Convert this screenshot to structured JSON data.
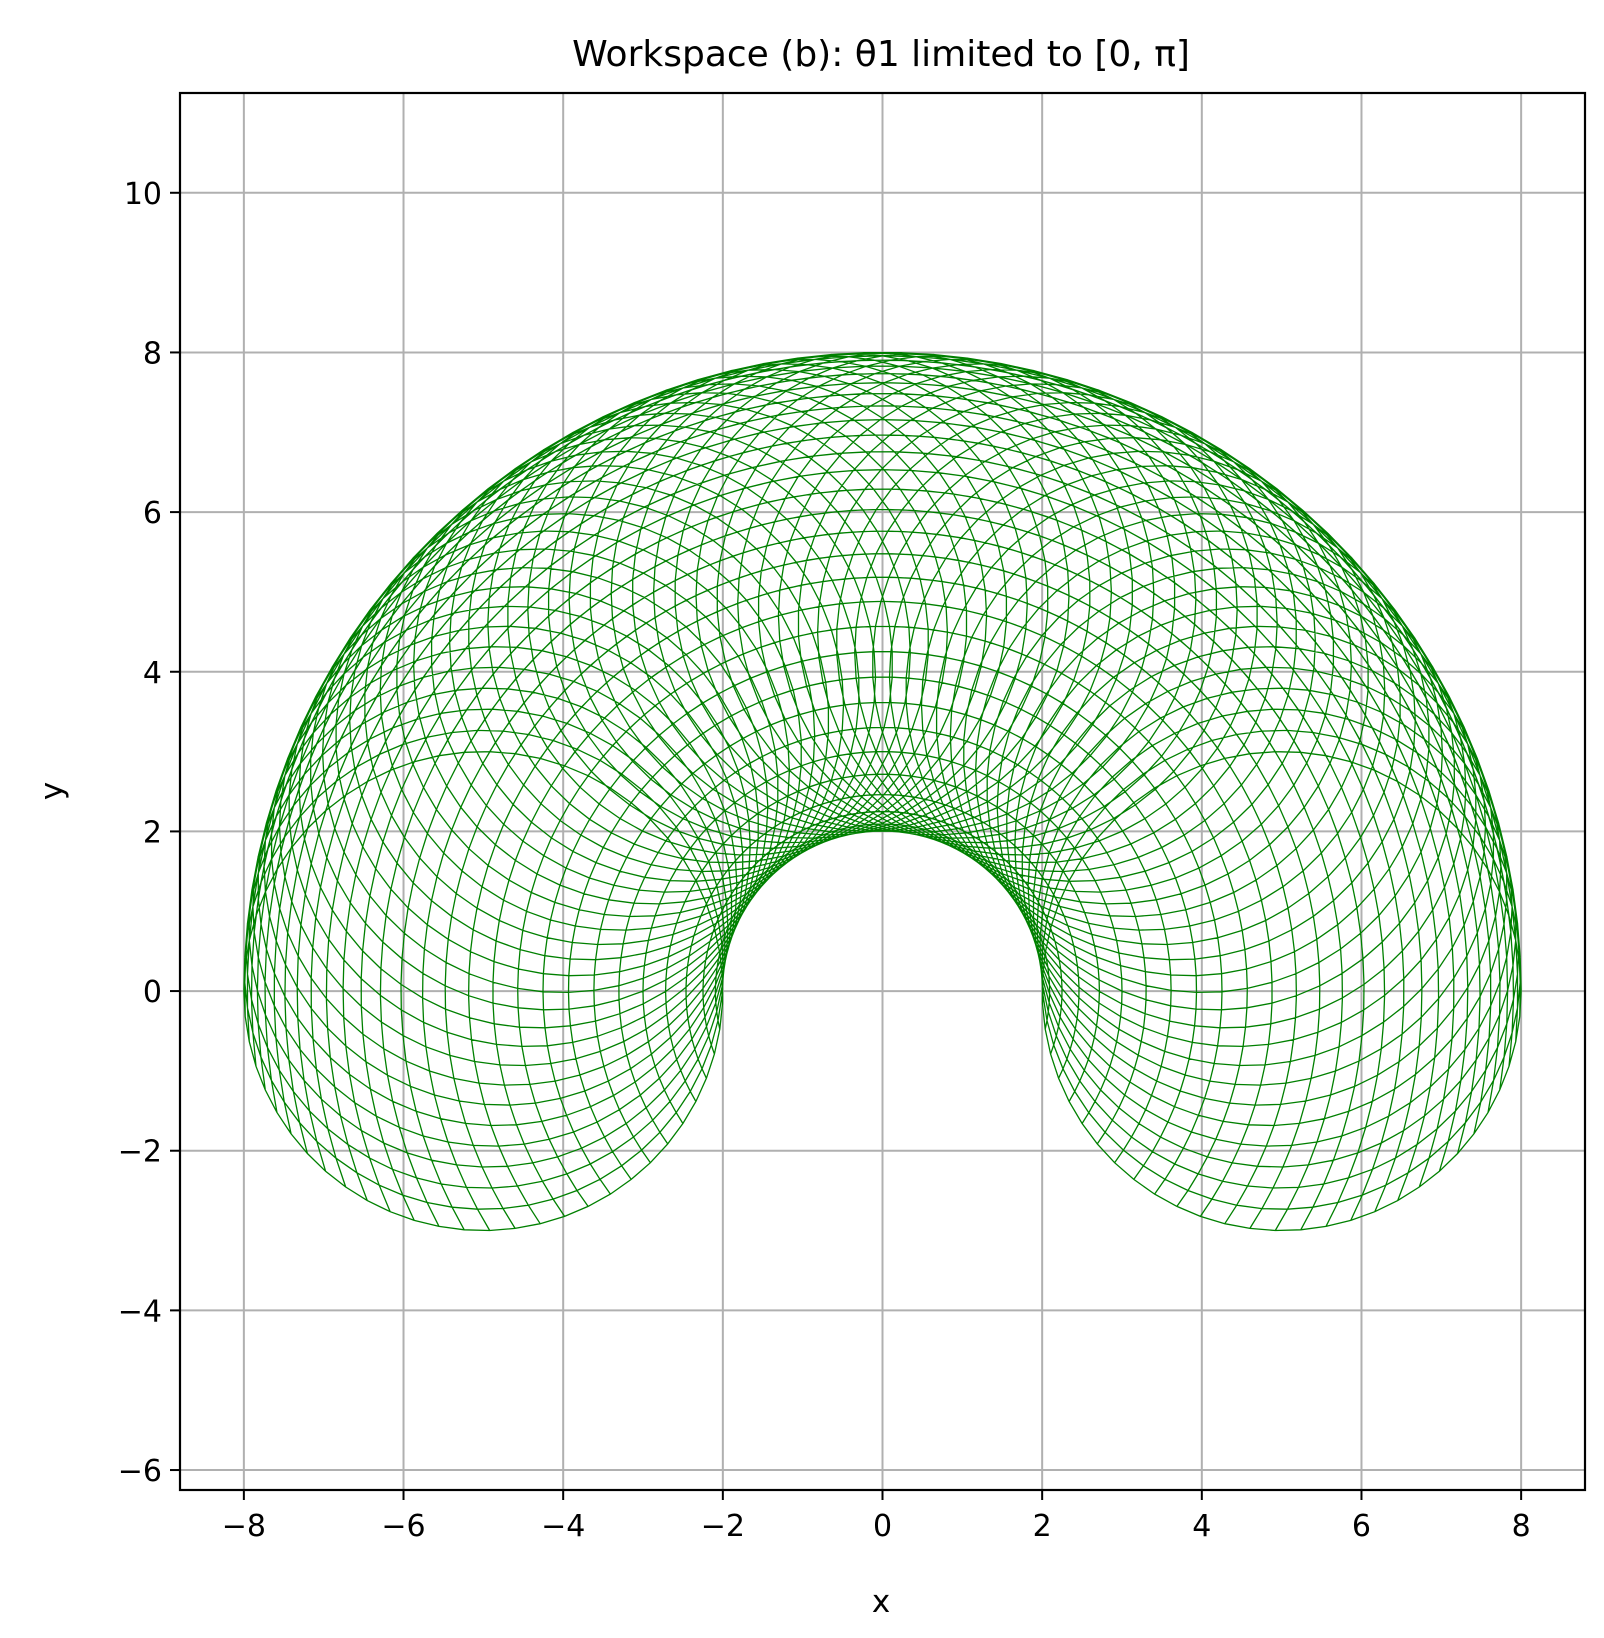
{
  "chart_data": {
    "type": "line",
    "title": "Workspace (b): θ1 limited to [0, π]",
    "xlabel": "x",
    "ylabel": "y",
    "xlim": [
      -8.8,
      8.8
    ],
    "ylim": [
      -6.25,
      11.25
    ],
    "grid": true,
    "x_ticks": [
      -8,
      -6,
      -4,
      -2,
      0,
      2,
      4,
      6,
      8
    ],
    "y_ticks": [
      -6,
      -4,
      -2,
      0,
      2,
      4,
      6,
      8,
      10
    ],
    "x_tick_labels": [
      "−8",
      "−6",
      "−4",
      "−2",
      "0",
      "2",
      "4",
      "6",
      "8"
    ],
    "y_tick_labels": [
      "−6",
      "−4",
      "−2",
      "0",
      "2",
      "4",
      "6",
      "8",
      "10"
    ],
    "series": [
      {
        "color": "#008000",
        "link_lengths": [
          5,
          3
        ],
        "theta1_range": [
          0,
          3.14159
        ],
        "theta2_range": [
          0,
          6.28319
        ],
        "samples_per_sweep": 60
      }
    ]
  }
}
